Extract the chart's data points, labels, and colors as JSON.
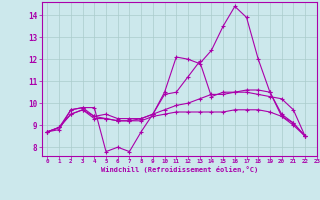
{
  "title": "",
  "xlabel": "Windchill (Refroidissement éolien,°C)",
  "ylabel": "",
  "background_color": "#cce8ec",
  "line_color": "#aa00aa",
  "grid_color": "#aacccc",
  "xlim": [
    -0.5,
    23
  ],
  "ylim": [
    7.6,
    14.6
  ],
  "xticks": [
    0,
    1,
    2,
    3,
    4,
    5,
    6,
    7,
    8,
    9,
    10,
    11,
    12,
    13,
    14,
    15,
    16,
    17,
    18,
    19,
    20,
    21,
    22,
    23
  ],
  "yticks": [
    8,
    9,
    10,
    11,
    12,
    13,
    14
  ],
  "series": [
    [
      8.7,
      8.8,
      9.7,
      9.8,
      9.8,
      7.8,
      8.0,
      7.8,
      8.7,
      9.5,
      10.5,
      12.1,
      12.0,
      11.8,
      12.4,
      13.5,
      14.4,
      13.9,
      12.0,
      10.5,
      9.4,
      9.1,
      8.5
    ],
    [
      8.7,
      8.9,
      9.7,
      9.8,
      9.4,
      9.5,
      9.3,
      9.3,
      9.3,
      9.5,
      10.4,
      10.5,
      11.2,
      11.9,
      10.3,
      10.5,
      10.5,
      10.6,
      10.6,
      10.5,
      9.5,
      9.1,
      8.5
    ],
    [
      8.7,
      8.9,
      9.5,
      9.7,
      9.3,
      9.3,
      9.2,
      9.2,
      9.3,
      9.5,
      9.7,
      9.9,
      10.0,
      10.2,
      10.4,
      10.4,
      10.5,
      10.5,
      10.4,
      10.3,
      10.2,
      9.7,
      8.5
    ],
    [
      8.7,
      8.9,
      9.5,
      9.7,
      9.4,
      9.3,
      9.2,
      9.2,
      9.2,
      9.4,
      9.5,
      9.6,
      9.6,
      9.6,
      9.6,
      9.6,
      9.7,
      9.7,
      9.7,
      9.6,
      9.4,
      9.0,
      8.5
    ]
  ],
  "figsize": [
    3.2,
    2.0
  ],
  "dpi": 100
}
